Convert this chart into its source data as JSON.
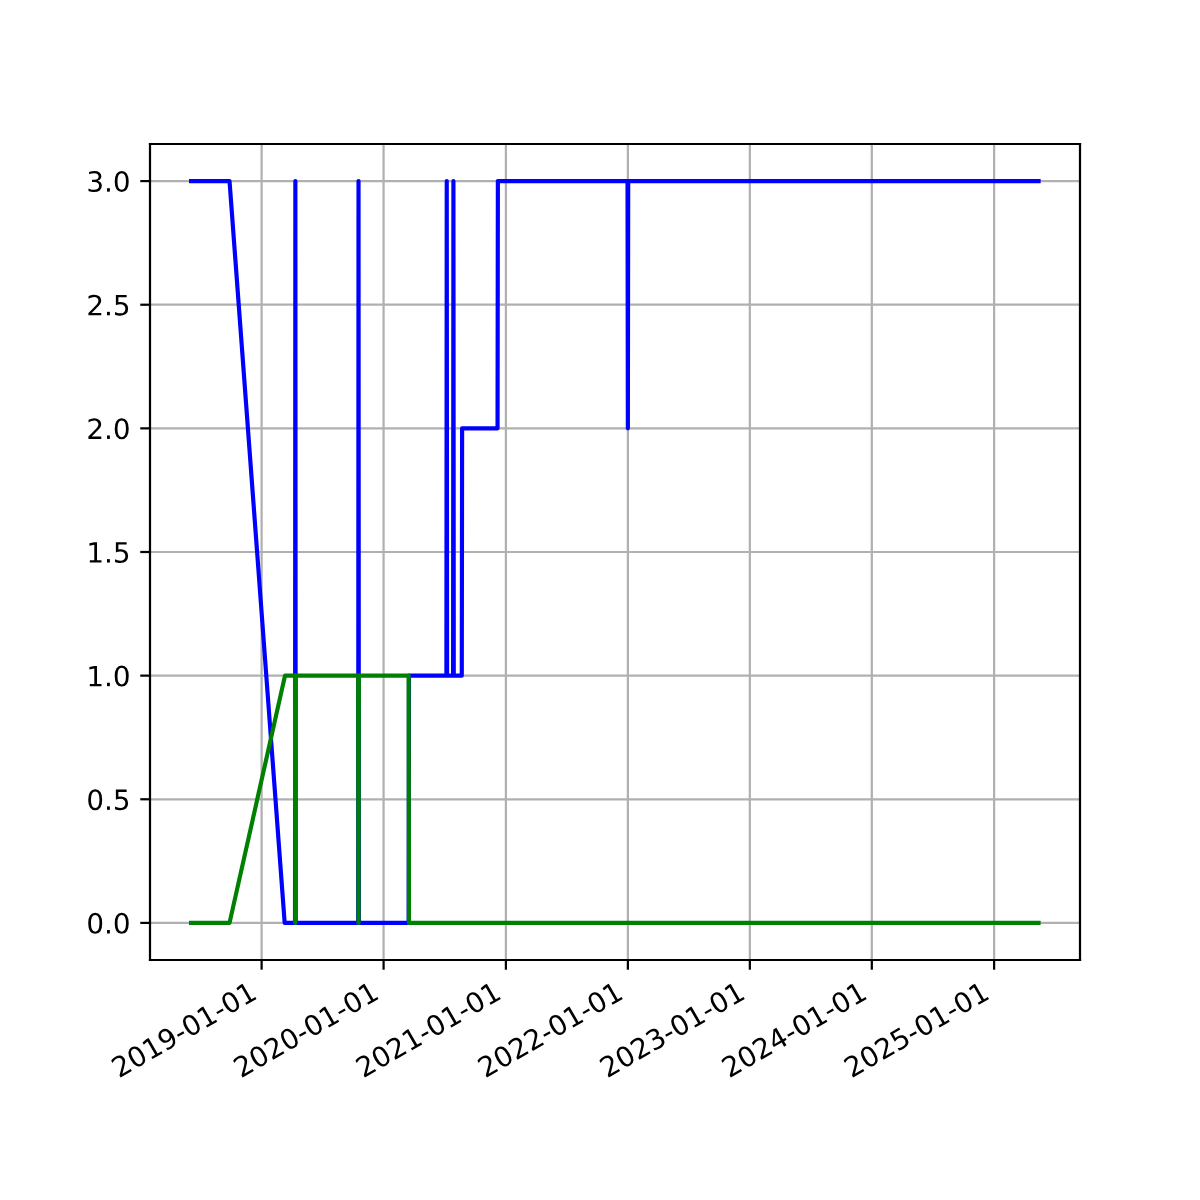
{
  "chart_data": {
    "type": "line",
    "xlim": [
      "2018-02-01",
      "2025-09-15"
    ],
    "xticks": [
      {
        "value": "2019-01-01",
        "label": "2019-01-01"
      },
      {
        "value": "2020-01-01",
        "label": "2020-01-01"
      },
      {
        "value": "2021-01-01",
        "label": "2021-01-01"
      },
      {
        "value": "2022-01-01",
        "label": "2022-01-01"
      },
      {
        "value": "2023-01-01",
        "label": "2023-01-01"
      },
      {
        "value": "2024-01-01",
        "label": "2024-01-01"
      },
      {
        "value": "2025-01-01",
        "label": "2025-01-01"
      }
    ],
    "ylim": [
      -0.15,
      3.15
    ],
    "yticks": [
      {
        "value": 0,
        "label": "0.0"
      },
      {
        "value": 0.5,
        "label": "0.5"
      },
      {
        "value": 1,
        "label": "1.0"
      },
      {
        "value": 1.5,
        "label": "1.5"
      },
      {
        "value": 2,
        "label": "2.0"
      },
      {
        "value": 2.5,
        "label": "2.5"
      },
      {
        "value": 3,
        "label": "3.0"
      }
    ],
    "grid": true,
    "series": [
      {
        "color": "#0000ff",
        "x": [
          "2018-06-04",
          "2018-09-27",
          "2019-03-11",
          "2019-04-11",
          "2019-04-12",
          "2019-04-13",
          "2019-10-17",
          "2019-10-18",
          "2019-10-19",
          "2020-03-16",
          "2020-03-17",
          "2020-07-07",
          "2020-07-08",
          "2020-07-09",
          "2020-07-27",
          "2020-07-28",
          "2020-07-29",
          "2020-08-22",
          "2020-08-23",
          "2020-12-07",
          "2020-12-08",
          "2021-12-31",
          "2022-01-01",
          "2022-01-02",
          "2025-05-14"
        ],
        "values": [
          3,
          3,
          0,
          0,
          3,
          0,
          0,
          3,
          0,
          0,
          1,
          1,
          3,
          1,
          1,
          3,
          1,
          1,
          2,
          2,
          3,
          3,
          2,
          3,
          3
        ]
      },
      {
        "color": "#008000",
        "x": [
          "2018-06-04",
          "2018-09-27",
          "2019-03-12",
          "2019-04-11",
          "2019-04-12",
          "2019-04-13",
          "2019-10-17",
          "2019-10-18",
          "2019-10-19",
          "2020-03-16",
          "2020-03-17",
          "2025-05-14"
        ],
        "values": [
          0,
          0,
          1,
          1,
          0,
          1,
          1,
          0,
          1,
          1,
          0,
          0
        ]
      }
    ]
  }
}
